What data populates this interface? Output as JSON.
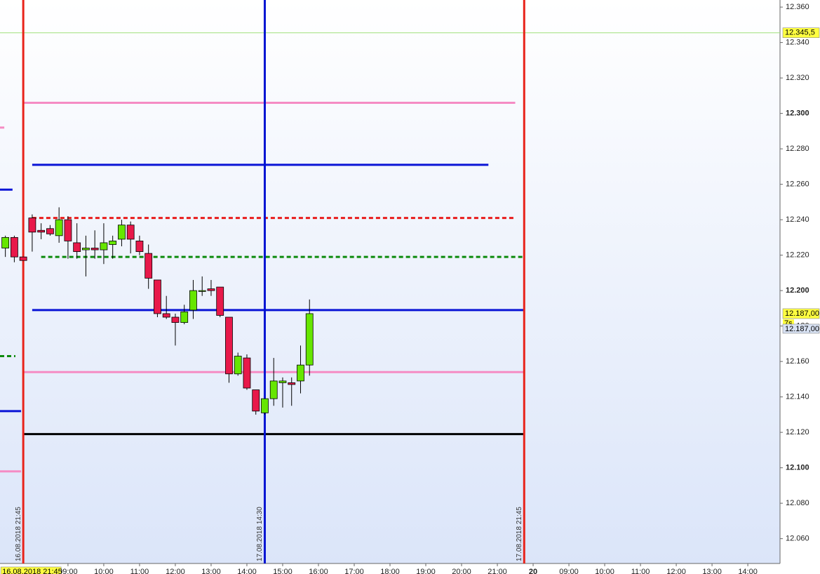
{
  "chart_data": {
    "type": "candlestick",
    "xlim": [
      7.1,
      28.9
    ],
    "ylim": [
      12.046,
      12.364
    ],
    "grid": false,
    "up_color": "#66e600",
    "down_color": "#e8194a",
    "x": [
      7.25,
      7.5,
      7.75,
      8,
      8.25,
      8.5,
      8.75,
      9,
      9.25,
      9.5,
      9.75,
      10,
      10.25,
      10.5,
      10.75,
      11,
      11.25,
      11.5,
      11.75,
      12,
      12.25,
      12.5,
      12.75,
      13,
      13.25,
      13.5,
      13.75,
      14,
      14.25,
      14.5,
      14.75,
      15,
      15.25,
      15.5,
      15.75
    ],
    "open": [
      12.224,
      12.23,
      12.219,
      12.241,
      12.234,
      12.235,
      12.231,
      12.24,
      12.227,
      12.223,
      12.224,
      12.223,
      12.226,
      12.229,
      12.237,
      12.228,
      12.221,
      12.206,
      12.187,
      12.185,
      12.182,
      12.189,
      12.1995,
      12.201,
      12.202,
      12.185,
      12.153,
      12.162,
      12.144,
      12.131,
      12.139,
      12.148,
      12.148,
      12.149,
      12.158
    ],
    "high": [
      12.231,
      12.231,
      12.219,
      12.243,
      12.238,
      12.237,
      12.247,
      12.242,
      12.238,
      12.231,
      12.234,
      12.238,
      12.231,
      12.24,
      12.239,
      12.231,
      12.226,
      12.206,
      12.197,
      12.187,
      12.192,
      12.206,
      12.208,
      12.206,
      12.202,
      12.185,
      12.165,
      12.164,
      12.144,
      12.139,
      12.162,
      12.151,
      12.151,
      12.169,
      12.195
    ],
    "low": [
      12.219,
      12.216,
      12.217,
      12.222,
      12.229,
      12.231,
      12.227,
      12.218,
      12.218,
      12.208,
      12.218,
      12.215,
      12.218,
      12.225,
      12.221,
      12.22,
      12.201,
      12.185,
      12.184,
      12.169,
      12.181,
      12.184,
      12.197,
      12.197,
      12.185,
      12.148,
      12.152,
      12.144,
      12.13,
      12.13,
      12.135,
      12.134,
      12.135,
      12.142,
      12.152
    ],
    "close": [
      12.23,
      12.219,
      12.217,
      12.233,
      12.233,
      12.232,
      12.24,
      12.228,
      12.222,
      12.224,
      12.223,
      12.227,
      12.228,
      12.237,
      12.229,
      12.222,
      12.207,
      12.187,
      12.185,
      12.182,
      12.188,
      12.2,
      12.2,
      12.2,
      12.186,
      12.153,
      12.163,
      12.145,
      12.132,
      12.139,
      12.149,
      12.149,
      12.147,
      12.158,
      12.187
    ],
    "xticks": [
      {
        "value": 9,
        "label": "09:00"
      },
      {
        "value": 10,
        "label": "10:00"
      },
      {
        "value": 11,
        "label": "11:00"
      },
      {
        "value": 12,
        "label": "12:00"
      },
      {
        "value": 13,
        "label": "13:00"
      },
      {
        "value": 14,
        "label": "14:00"
      },
      {
        "value": 15,
        "label": "15:00"
      },
      {
        "value": 16,
        "label": "16:00"
      },
      {
        "value": 17,
        "label": "17:00"
      },
      {
        "value": 18,
        "label": "18:00"
      },
      {
        "value": 19,
        "label": "19:00"
      },
      {
        "value": 20,
        "label": "20:00"
      },
      {
        "value": 21,
        "label": "21:00"
      },
      {
        "value": 22,
        "label": "20"
      },
      {
        "value": 23,
        "label": "09:00"
      },
      {
        "value": 24,
        "label": "10:00"
      },
      {
        "value": 25,
        "label": "11:00"
      },
      {
        "value": 26,
        "label": "12:00"
      },
      {
        "value": 27,
        "label": "13:00"
      },
      {
        "value": 28,
        "label": "14:00"
      }
    ],
    "yticks": [
      {
        "value": 12.36,
        "label": "12.360"
      },
      {
        "value": 12.34,
        "label": "12.340"
      },
      {
        "value": 12.32,
        "label": "12.320"
      },
      {
        "value": 12.3,
        "label": "12.300"
      },
      {
        "value": 12.28,
        "label": "12.280"
      },
      {
        "value": 12.26,
        "label": "12.260"
      },
      {
        "value": 12.24,
        "label": "12.240"
      },
      {
        "value": 12.22,
        "label": "12.220"
      },
      {
        "value": 12.2,
        "label": "12.200"
      },
      {
        "value": 12.18,
        "label": "12.180"
      },
      {
        "value": 12.16,
        "label": "12.160"
      },
      {
        "value": 12.14,
        "label": "12.140"
      },
      {
        "value": 12.12,
        "label": "12.120"
      },
      {
        "value": 12.1,
        "label": "12.100"
      },
      {
        "value": 12.08,
        "label": "12.080"
      },
      {
        "value": 12.06,
        "label": "12.060"
      }
    ],
    "levels": [
      {
        "value": 12.306,
        "x": [
          7.75,
          21.5
        ],
        "color": "#f58cc4",
        "dashed": false
      },
      {
        "value": 12.271,
        "x": [
          8,
          20.75
        ],
        "color": "#0a14d6",
        "dashed": false
      },
      {
        "value": 12.241,
        "x": [
          8,
          21.5
        ],
        "color": "#e81c1c",
        "dashed": true
      },
      {
        "value": 12.219,
        "x": [
          8.25,
          21.75
        ],
        "color": "#0c8a0c",
        "dashed": true
      },
      {
        "value": 12.189,
        "x": [
          8,
          21.75
        ],
        "color": "#0a14d6",
        "dashed": false
      },
      {
        "value": 12.154,
        "x": [
          7.75,
          21.75
        ],
        "color": "#f58cc4",
        "dashed": false
      },
      {
        "value": 12.119,
        "x": [
          7.75,
          21.75
        ],
        "color": "#000000",
        "dashed": false
      },
      {
        "value": 12.292,
        "x": [
          7.1,
          7.22
        ],
        "color": "#f58cc4",
        "dashed": false
      },
      {
        "value": 12.257,
        "x": [
          7.1,
          7.45
        ],
        "color": "#0a14d6",
        "dashed": false
      },
      {
        "value": 12.163,
        "x": [
          7.1,
          7.53
        ],
        "color": "#0c8a0c",
        "dashed": true
      },
      {
        "value": 12.132,
        "x": [
          7.1,
          7.69
        ],
        "color": "#0a14d6",
        "dashed": false
      },
      {
        "value": 12.098,
        "x": [
          7.1,
          7.69
        ],
        "color": "#f58cc4",
        "dashed": false
      }
    ],
    "vlines": [
      {
        "x": 7.75,
        "label": "16.08.2018 21:45",
        "color": "#e8231a"
      },
      {
        "x": 14.5,
        "label": "17.08.2018 14:30",
        "color": "#0014d2"
      },
      {
        "x": 21.75,
        "label": "17.08.2018 21:45",
        "color": "#e8231a"
      }
    ],
    "alert_line": {
      "value": 12.3455,
      "label": "12.345,5",
      "color": "#9ee07a"
    },
    "price_tags": [
      {
        "value": 12.187,
        "label": "12.187,00"
      },
      {
        "label": "7s"
      },
      {
        "value": 12.187,
        "label": "12.187,00"
      }
    ]
  }
}
